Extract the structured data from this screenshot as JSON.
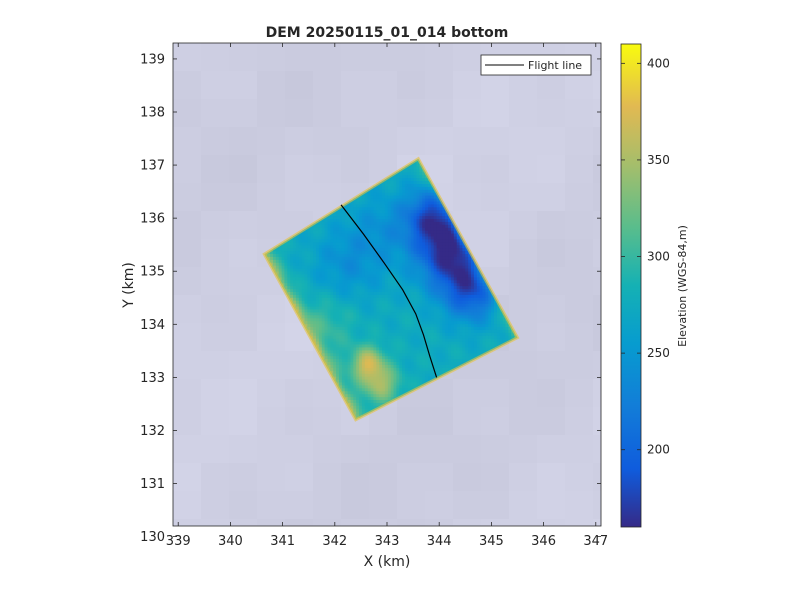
{
  "chart_data": {
    "type": "heatmap",
    "title": "DEM 20250115_01_014 bottom",
    "xlabel": "X (km)",
    "ylabel": "Y (km)",
    "xlim": [
      338.9,
      347.1
    ],
    "ylim": [
      130.2,
      139.3
    ],
    "xticks": [
      339,
      340,
      341,
      342,
      343,
      344,
      345,
      346,
      347
    ],
    "yticks": [
      130,
      131,
      132,
      133,
      134,
      135,
      136,
      137,
      138,
      139
    ],
    "legend": {
      "position": "top-right",
      "entries": [
        "Flight line"
      ]
    },
    "colorbar": {
      "label": "Elevation (WGS-84,m)",
      "range": [
        160,
        410
      ],
      "ticks": [
        200,
        250,
        300,
        350,
        400
      ],
      "colormap": "parula"
    },
    "swath_corners": [
      [
        340.65,
        135.32
      ],
      [
        343.6,
        137.12
      ],
      [
        345.5,
        133.75
      ],
      [
        342.4,
        132.2
      ]
    ],
    "flight_line": {
      "name": "Flight line",
      "x": [
        342.12,
        342.55,
        342.95,
        343.3,
        343.55,
        343.7,
        343.82,
        343.95
      ],
      "y": [
        136.25,
        135.7,
        135.15,
        134.65,
        134.2,
        133.8,
        133.4,
        133.0
      ]
    },
    "features": [
      {
        "x": 344.2,
        "y": 135.3,
        "value": 175,
        "sigma": 0.45
      },
      {
        "x": 343.9,
        "y": 136.0,
        "value": 185,
        "sigma": 0.4
      },
      {
        "x": 344.6,
        "y": 134.6,
        "value": 195,
        "sigma": 0.4
      },
      {
        "x": 342.2,
        "y": 135.1,
        "value": 245,
        "sigma": 0.5
      },
      {
        "x": 342.9,
        "y": 135.8,
        "value": 250,
        "sigma": 0.5
      },
      {
        "x": 342.6,
        "y": 133.25,
        "value": 360,
        "sigma": 0.22
      },
      {
        "x": 342.85,
        "y": 132.85,
        "value": 345,
        "sigma": 0.25
      },
      {
        "x": 341.8,
        "y": 134.0,
        "value": 300,
        "sigma": 0.4
      }
    ],
    "background_value": 275,
    "colors": {
      "background_field": "#cdcee3",
      "line": "#000000",
      "axis": "#262626"
    }
  }
}
